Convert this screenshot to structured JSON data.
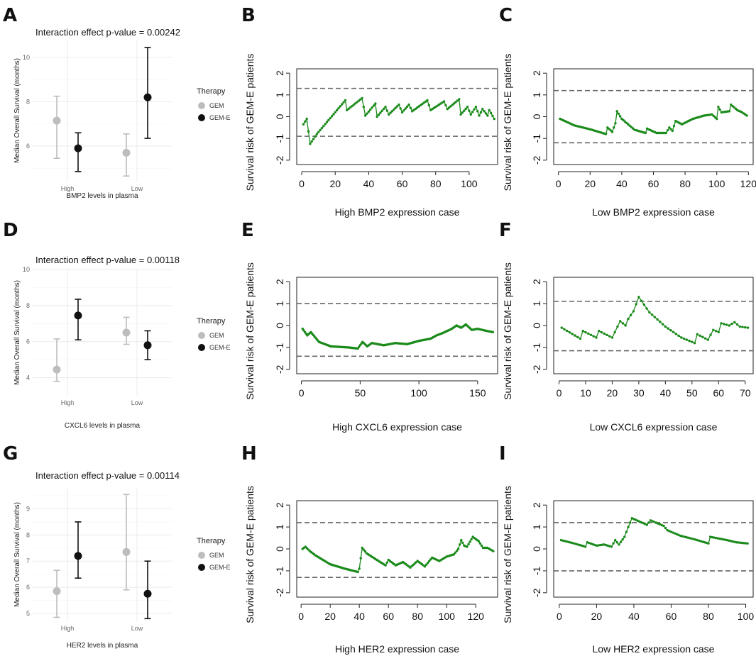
{
  "colors": {
    "gem": "#bdbdbd",
    "geme": "#111111",
    "trace": "#1a8a1a",
    "grid": "#ebebeb"
  },
  "chart_data": [
    {
      "panel": "A",
      "type": "errorbar",
      "title": "Interaction effect p-value = 0.00242",
      "xlabel": "BMP2 levels in plasma",
      "ylabel": "Median Overall Survival (months)",
      "categories": [
        "High",
        "Low"
      ],
      "ylim": [
        4.4,
        10.8
      ],
      "yticks": [
        6,
        8,
        10
      ],
      "legend": {
        "title": "Therapy",
        "items": [
          "GEM",
          "GEM-E"
        ]
      },
      "series": [
        {
          "name": "GEM",
          "values": [
            7.15,
            5.7
          ],
          "lower": [
            5.45,
            4.65
          ],
          "upper": [
            8.25,
            6.55
          ]
        },
        {
          "name": "GEM-E",
          "values": [
            5.9,
            8.2
          ],
          "lower": [
            4.85,
            6.35
          ],
          "upper": [
            6.6,
            10.45
          ]
        }
      ]
    },
    {
      "panel": "D",
      "type": "errorbar",
      "title": "Interaction effect p-value = 0.00118",
      "xlabel": "CXCL6 levels in plasma",
      "ylabel": "Median Overall Survival (months)",
      "categories": [
        "High",
        "Low"
      ],
      "ylim": [
        3.0,
        10.0
      ],
      "yticks": [
        4,
        6,
        8,
        10
      ],
      "legend": {
        "title": "Therapy",
        "items": [
          "GEM",
          "GEM-E"
        ]
      },
      "series": [
        {
          "name": "GEM",
          "values": [
            4.45,
            6.5
          ],
          "lower": [
            3.8,
            5.85
          ],
          "upper": [
            6.15,
            7.35
          ]
        },
        {
          "name": "GEM-E",
          "values": [
            7.45,
            5.8
          ],
          "lower": [
            6.1,
            5.0
          ],
          "upper": [
            8.35,
            6.6
          ]
        }
      ]
    },
    {
      "panel": "G",
      "type": "errorbar",
      "title": "Interaction effect p-value = 0.00114",
      "xlabel": "HER2 levels in plasma",
      "ylabel": "Median Overall Survival (months)",
      "categories": [
        "High",
        "Low"
      ],
      "ylim": [
        4.7,
        9.8
      ],
      "yticks": [
        5,
        6,
        7,
        8,
        9
      ],
      "legend": {
        "title": "Therapy",
        "items": [
          "GEM",
          "GEM-E"
        ]
      },
      "series": [
        {
          "name": "GEM",
          "values": [
            5.85,
            7.35
          ],
          "lower": [
            4.85,
            5.9
          ],
          "upper": [
            6.65,
            9.55
          ]
        },
        {
          "name": "GEM-E",
          "values": [
            7.2,
            5.75
          ],
          "lower": [
            6.35,
            4.8
          ],
          "upper": [
            8.5,
            7.0
          ]
        }
      ]
    },
    {
      "panel": "B",
      "type": "line",
      "n": 115,
      "xlabel": "High BMP2 expression case",
      "ylabel": "Survival risk of GEM-E patients",
      "xlim": [
        -3,
        117
      ],
      "ylim": [
        -2.2,
        2.2
      ],
      "xticks": [
        0,
        20,
        40,
        60,
        80,
        100
      ],
      "yticks": [
        -2,
        -1,
        0,
        1,
        2
      ],
      "thresholds": [
        1.3,
        -0.9
      ],
      "anchors": [
        [
          1,
          -0.35
        ],
        [
          3,
          -0.1
        ],
        [
          5,
          -1.25
        ],
        [
          9,
          -0.8
        ],
        [
          26,
          0.75
        ],
        [
          27,
          0.3
        ],
        [
          36,
          0.85
        ],
        [
          38,
          0.05
        ],
        [
          44,
          0.6
        ],
        [
          45,
          0.0
        ],
        [
          50,
          0.45
        ],
        [
          52,
          0.1
        ],
        [
          58,
          0.55
        ],
        [
          60,
          0.2
        ],
        [
          64,
          0.55
        ],
        [
          66,
          0.25
        ],
        [
          75,
          0.75
        ],
        [
          77,
          0.3
        ],
        [
          85,
          0.7
        ],
        [
          87,
          0.35
        ],
        [
          94,
          0.8
        ],
        [
          95,
          0.1
        ],
        [
          99,
          0.45
        ],
        [
          101,
          0.1
        ],
        [
          104,
          0.45
        ],
        [
          106,
          0.05
        ],
        [
          108,
          0.35
        ],
        [
          111,
          0.05
        ],
        [
          112,
          0.3
        ],
        [
          115,
          -0.1
        ]
      ]
    },
    {
      "panel": "C",
      "type": "line",
      "n": 119,
      "xlabel": "Low BMP2 expression case",
      "ylabel": "Survival risk of GEM-E patients",
      "xlim": [
        -3,
        123
      ],
      "ylim": [
        -2.2,
        2.2
      ],
      "xticks": [
        0,
        20,
        40,
        60,
        80,
        100,
        120
      ],
      "yticks": [
        -2,
        -1,
        0,
        1,
        2
      ],
      "thresholds": [
        1.2,
        -1.2
      ],
      "anchors": [
        [
          1,
          -0.1
        ],
        [
          10,
          -0.4
        ],
        [
          21,
          -0.6
        ],
        [
          30,
          -0.8
        ],
        [
          31,
          -0.5
        ],
        [
          34,
          -0.7
        ],
        [
          36,
          -0.3
        ],
        [
          37,
          0.25
        ],
        [
          40,
          -0.1
        ],
        [
          48,
          -0.6
        ],
        [
          55,
          -0.75
        ],
        [
          56,
          -0.55
        ],
        [
          62,
          -0.75
        ],
        [
          68,
          -0.75
        ],
        [
          70,
          -0.5
        ],
        [
          72,
          -0.65
        ],
        [
          74,
          -0.2
        ],
        [
          78,
          -0.35
        ],
        [
          85,
          -0.1
        ],
        [
          92,
          0.05
        ],
        [
          97,
          0.1
        ],
        [
          100,
          -0.1
        ],
        [
          101,
          0.45
        ],
        [
          103,
          0.2
        ],
        [
          108,
          0.25
        ],
        [
          109,
          0.55
        ],
        [
          113,
          0.3
        ],
        [
          116,
          0.2
        ],
        [
          119,
          0.05
        ]
      ]
    },
    {
      "panel": "E",
      "type": "line",
      "n": 163,
      "xlabel": "High CXCL6 expression case",
      "ylabel": "Survival risk of GEM-E patients",
      "xlim": [
        -4,
        167
      ],
      "ylim": [
        -2.2,
        2.2
      ],
      "xticks": [
        0,
        50,
        100,
        150
      ],
      "yticks": [
        -2,
        -1,
        0,
        1,
        2
      ],
      "thresholds": [
        1.0,
        -1.4
      ],
      "anchors": [
        [
          1,
          -0.15
        ],
        [
          5,
          -0.45
        ],
        [
          8,
          -0.3
        ],
        [
          15,
          -0.75
        ],
        [
          25,
          -0.95
        ],
        [
          40,
          -1.0
        ],
        [
          48,
          -1.05
        ],
        [
          52,
          -0.75
        ],
        [
          56,
          -0.95
        ],
        [
          60,
          -0.8
        ],
        [
          70,
          -0.9
        ],
        [
          80,
          -0.8
        ],
        [
          90,
          -0.85
        ],
        [
          100,
          -0.7
        ],
        [
          110,
          -0.6
        ],
        [
          115,
          -0.45
        ],
        [
          120,
          -0.35
        ],
        [
          128,
          -0.15
        ],
        [
          132,
          0.0
        ],
        [
          136,
          -0.1
        ],
        [
          140,
          0.05
        ],
        [
          145,
          -0.2
        ],
        [
          150,
          -0.15
        ],
        [
          158,
          -0.25
        ],
        [
          163,
          -0.3
        ]
      ]
    },
    {
      "panel": "F",
      "type": "line",
      "n": 71,
      "xlabel": "Low CXCL6 expression case",
      "ylabel": "Survival risk of GEM-E patients",
      "xlim": [
        -2,
        73
      ],
      "ylim": [
        -2.2,
        2.2
      ],
      "xticks": [
        0,
        10,
        20,
        30,
        40,
        50,
        60,
        70
      ],
      "yticks": [
        -2,
        -1,
        0,
        1,
        2
      ],
      "thresholds": [
        1.1,
        -1.15
      ],
      "anchors": [
        [
          1,
          -0.1
        ],
        [
          8,
          -0.6
        ],
        [
          9,
          -0.25
        ],
        [
          14,
          -0.55
        ],
        [
          15,
          -0.25
        ],
        [
          20,
          -0.55
        ],
        [
          23,
          0.2
        ],
        [
          25,
          0.0
        ],
        [
          26,
          0.3
        ],
        [
          28,
          0.65
        ],
        [
          30,
          1.3
        ],
        [
          34,
          0.6
        ],
        [
          40,
          -0.05
        ],
        [
          46,
          -0.55
        ],
        [
          51,
          -0.8
        ],
        [
          52,
          -0.4
        ],
        [
          56,
          -0.65
        ],
        [
          58,
          -0.2
        ],
        [
          60,
          -0.3
        ],
        [
          61,
          0.1
        ],
        [
          64,
          0.0
        ],
        [
          66,
          0.15
        ],
        [
          68,
          -0.05
        ],
        [
          71,
          -0.1
        ]
      ]
    },
    {
      "panel": "H",
      "type": "line",
      "n": 132,
      "xlabel": "High HER2 expression case",
      "ylabel": "Survival risk of GEM-E patients",
      "xlim": [
        -3,
        135
      ],
      "ylim": [
        -2.2,
        2.2
      ],
      "xticks": [
        0,
        20,
        40,
        60,
        80,
        100,
        120
      ],
      "yticks": [
        -2,
        -1,
        0,
        1,
        2
      ],
      "thresholds": [
        1.2,
        -1.3
      ],
      "anchors": [
        [
          1,
          0.0
        ],
        [
          3,
          0.1
        ],
        [
          6,
          -0.1
        ],
        [
          10,
          -0.3
        ],
        [
          20,
          -0.7
        ],
        [
          30,
          -0.9
        ],
        [
          39,
          -1.05
        ],
        [
          40,
          -0.9
        ],
        [
          42,
          0.05
        ],
        [
          45,
          -0.2
        ],
        [
          52,
          -0.5
        ],
        [
          58,
          -0.75
        ],
        [
          60,
          -0.5
        ],
        [
          65,
          -0.75
        ],
        [
          70,
          -0.6
        ],
        [
          75,
          -0.85
        ],
        [
          80,
          -0.55
        ],
        [
          85,
          -0.8
        ],
        [
          90,
          -0.4
        ],
        [
          95,
          -0.55
        ],
        [
          100,
          -0.35
        ],
        [
          105,
          -0.25
        ],
        [
          108,
          0.0
        ],
        [
          110,
          0.4
        ],
        [
          112,
          0.15
        ],
        [
          114,
          0.1
        ],
        [
          118,
          0.55
        ],
        [
          122,
          0.35
        ],
        [
          125,
          0.05
        ],
        [
          128,
          0.05
        ],
        [
          132,
          -0.1
        ]
      ]
    },
    {
      "panel": "I",
      "type": "line",
      "n": 101,
      "xlabel": "Low HER2 expression case",
      "ylabel": "Survival risk of GEM-E patients",
      "xlim": [
        -3,
        104
      ],
      "ylim": [
        -2.2,
        2.2
      ],
      "xticks": [
        0,
        20,
        40,
        60,
        80,
        100
      ],
      "yticks": [
        -2,
        -1,
        0,
        1,
        2
      ],
      "thresholds": [
        1.2,
        -1.0
      ],
      "anchors": [
        [
          1,
          0.4
        ],
        [
          8,
          0.25
        ],
        [
          14,
          0.1
        ],
        [
          15,
          0.3
        ],
        [
          20,
          0.15
        ],
        [
          24,
          0.2
        ],
        [
          28,
          0.1
        ],
        [
          30,
          0.4
        ],
        [
          32,
          0.2
        ],
        [
          35,
          0.55
        ],
        [
          37,
          1.0
        ],
        [
          39,
          1.4
        ],
        [
          47,
          1.1
        ],
        [
          49,
          1.3
        ],
        [
          56,
          1.05
        ],
        [
          58,
          0.85
        ],
        [
          65,
          0.6
        ],
        [
          72,
          0.45
        ],
        [
          78,
          0.3
        ],
        [
          80,
          0.25
        ],
        [
          81,
          0.55
        ],
        [
          90,
          0.4
        ],
        [
          95,
          0.3
        ],
        [
          101,
          0.25
        ]
      ]
    }
  ]
}
